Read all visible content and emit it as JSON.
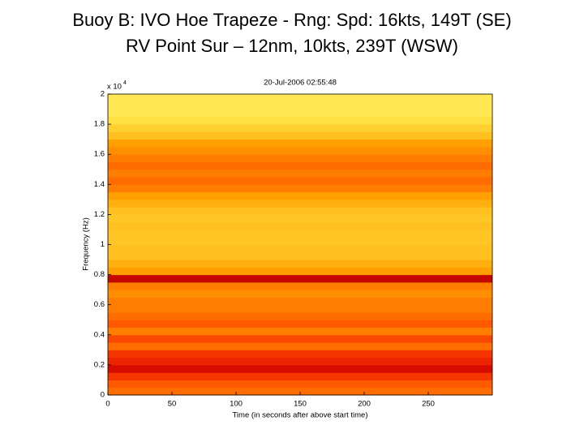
{
  "chart_data": {
    "type": "heatmap",
    "title": "Buoy B: IVO Hoe Trapeze - Rng: Spd: 16kts, 149T (SE)",
    "subtitle": "RV Point Sur – 12nm,   10kts, 239T (WSW)",
    "plot_title": "20-Jul-2006 02:55:48",
    "y_multiplier": {
      "base": "x 10",
      "exponent": "4"
    },
    "xlabel": "Time (in seconds after above start time)",
    "ylabel": "Frequency (Hz)",
    "xlim": [
      0,
      300
    ],
    "xticks": [
      0,
      50,
      100,
      150,
      200,
      250
    ],
    "ylim": [
      0,
      2
    ],
    "yticks": [
      0,
      0.2,
      0.4,
      0.6,
      0.8,
      1,
      1.2,
      1.4,
      1.6,
      1.8,
      2
    ],
    "y_bins": [
      0,
      0.05,
      0.1,
      0.15,
      0.2,
      0.25,
      0.3,
      0.35,
      0.4,
      0.45,
      0.5,
      0.55,
      0.6,
      0.65,
      0.7,
      0.75,
      0.8,
      0.85,
      0.9,
      0.95,
      1,
      1.05,
      1.1,
      1.15,
      1.2,
      1.25,
      1.3,
      1.35,
      1.4,
      1.45,
      1.5,
      1.55,
      1.6,
      1.65,
      1.7,
      1.75,
      1.8,
      1.85,
      1.9,
      1.95,
      2
    ],
    "values": [
      0.45,
      0.4,
      0.3,
      0.15,
      0.25,
      0.3,
      0.45,
      0.35,
      0.5,
      0.4,
      0.45,
      0.5,
      0.5,
      0.55,
      0.5,
      0.1,
      0.6,
      0.65,
      0.7,
      0.7,
      0.72,
      0.72,
      0.7,
      0.72,
      0.7,
      0.65,
      0.6,
      0.5,
      0.45,
      0.5,
      0.45,
      0.5,
      0.55,
      0.6,
      0.7,
      0.75,
      0.8,
      0.85,
      0.85,
      0.85
    ],
    "zlim": [
      0,
      1
    ],
    "colormap": [
      "#a00000",
      "#e81000",
      "#ff5a00",
      "#ffa000",
      "#ffe040",
      "#ffff90"
    ]
  }
}
